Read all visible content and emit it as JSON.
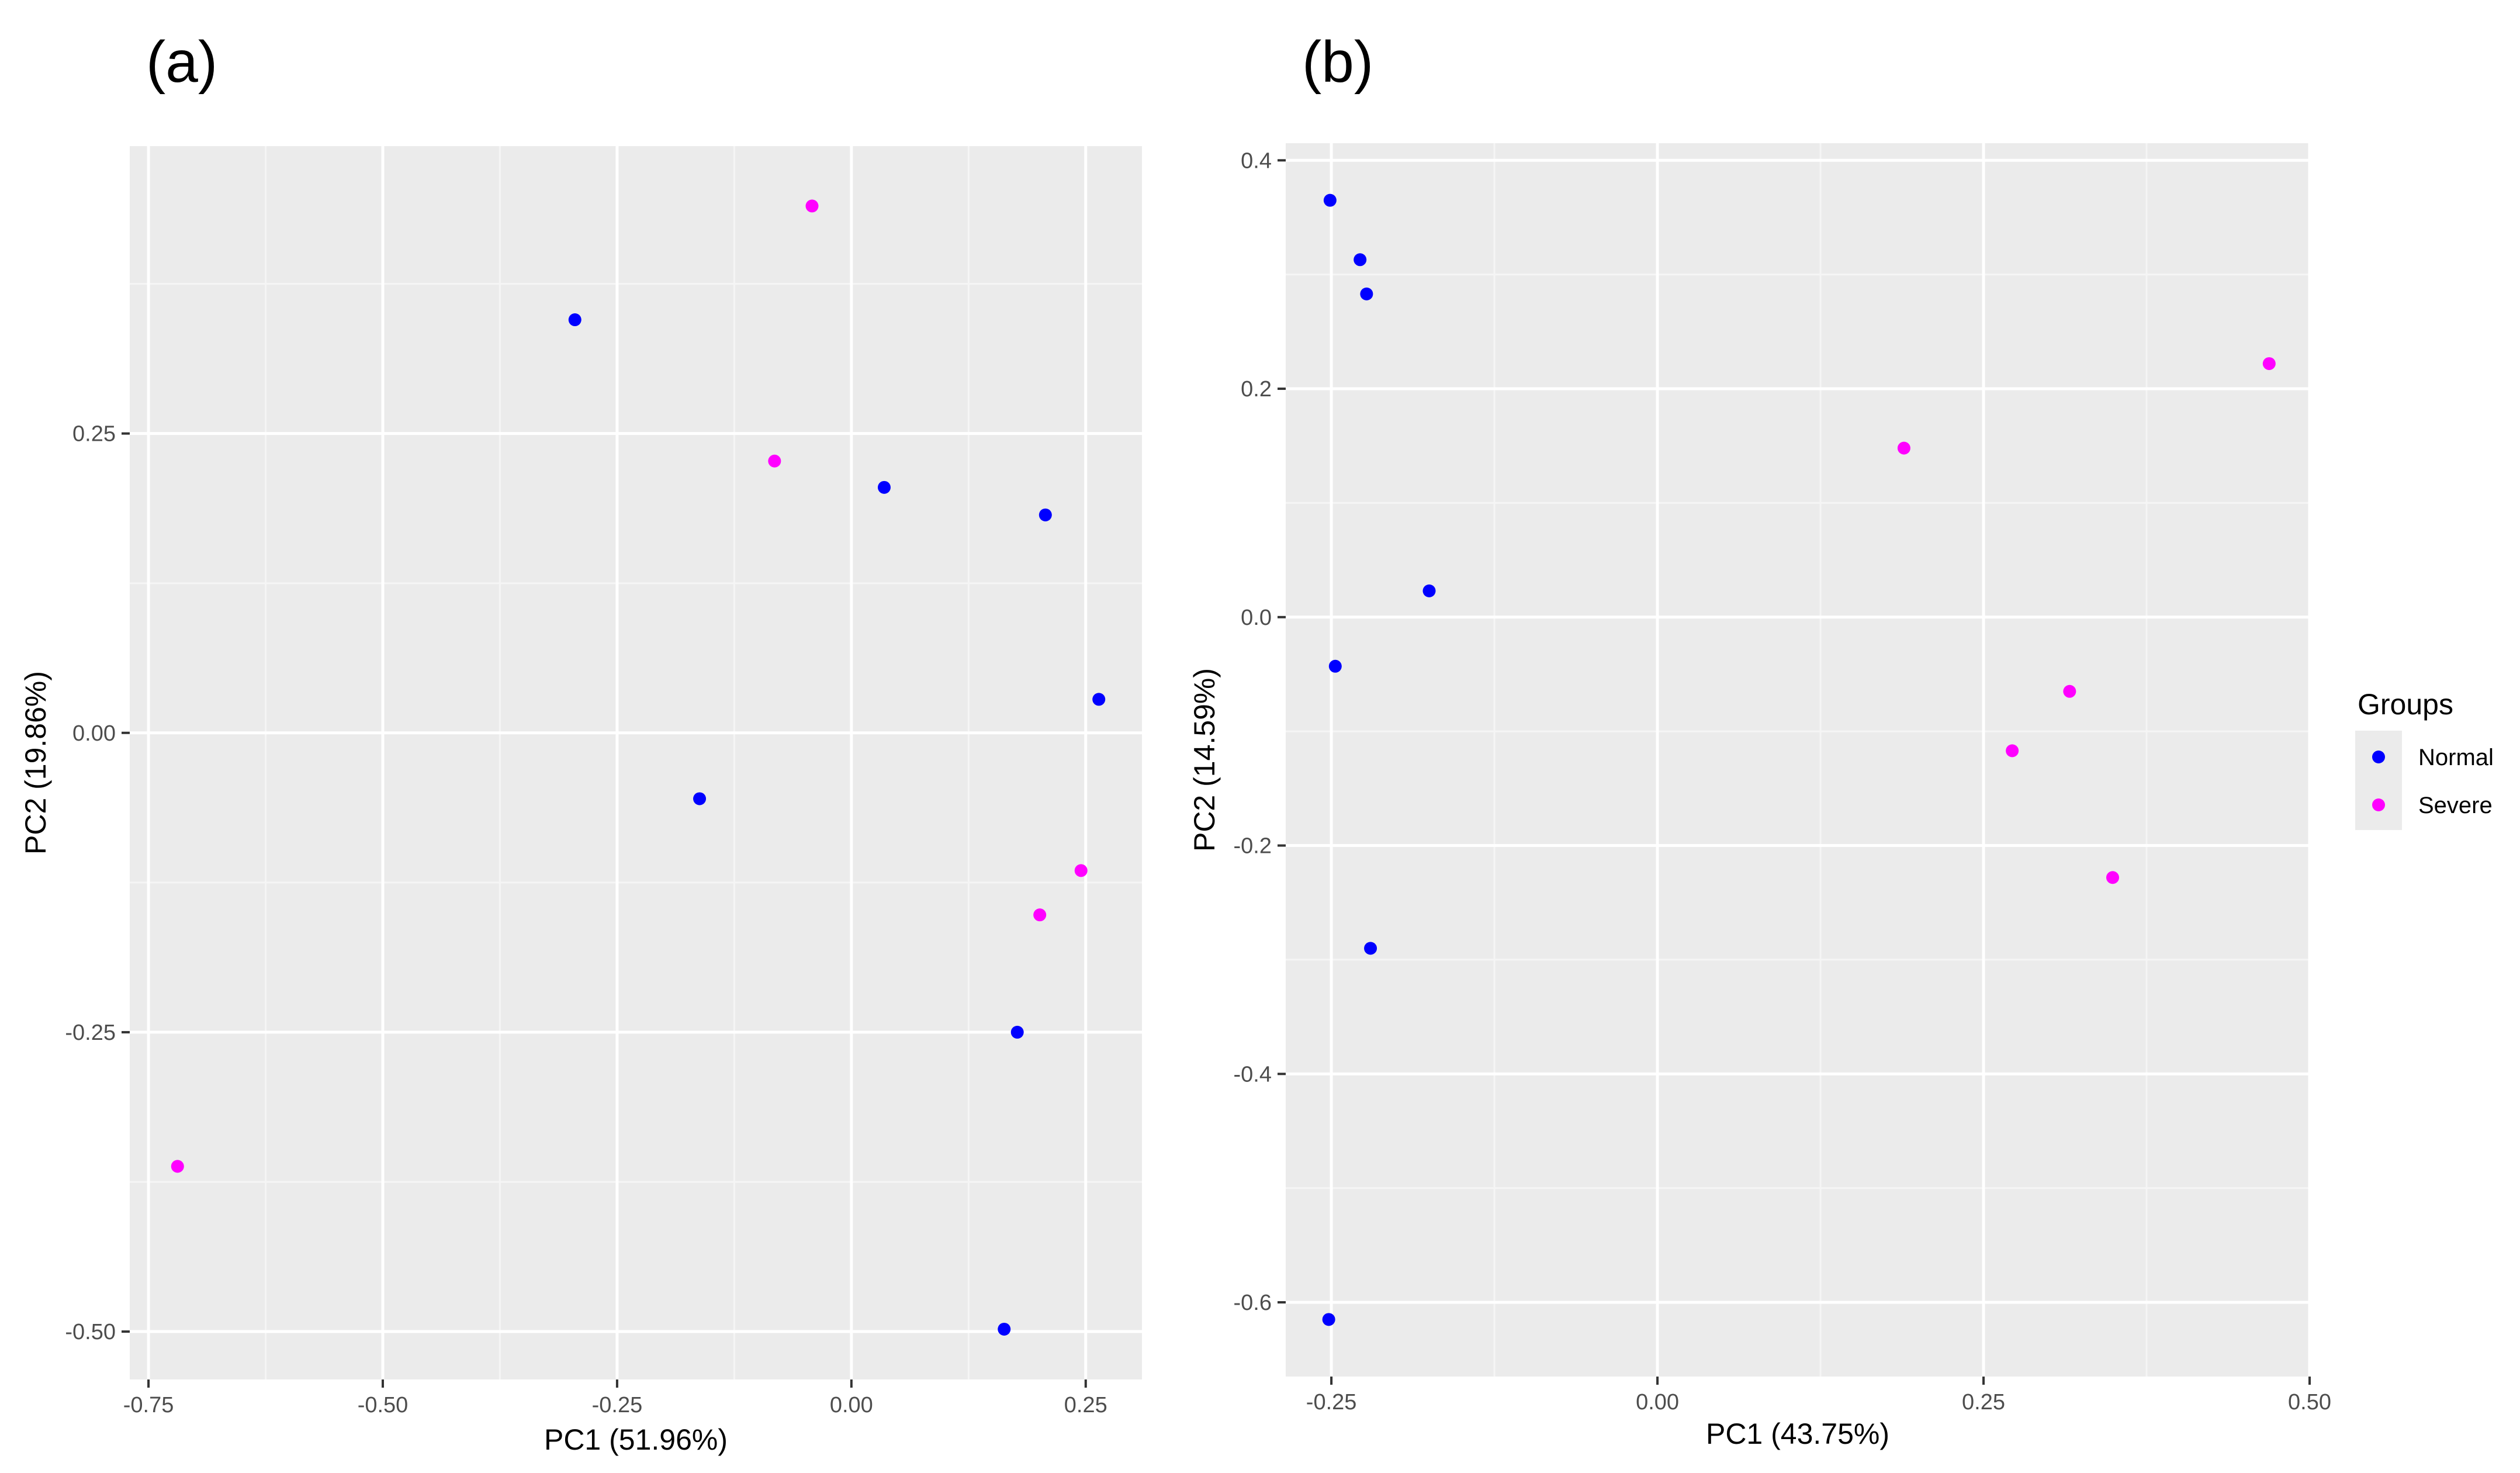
{
  "chart_data": [
    {
      "type": "scatter",
      "panel_label": "(a)",
      "xlabel": "PC1 (51.96%)",
      "ylabel": "PC2 (19.86%)",
      "xlim": [
        -0.77,
        0.31
      ],
      "ylim": [
        -0.54,
        0.49
      ],
      "x_ticks": [
        -0.75,
        -0.5,
        -0.25,
        0.0,
        0.25
      ],
      "x_tick_labels": [
        "-0.75",
        "-0.50",
        "-0.25",
        "0.00",
        "0.25"
      ],
      "y_ticks": [
        -0.5,
        -0.25,
        0.0,
        0.25
      ],
      "y_tick_labels": [
        "-0.50",
        "-0.25",
        "0.00",
        "0.25"
      ],
      "grid": true,
      "series": [
        {
          "name": "Normal",
          "color": "#0000ff",
          "points": [
            {
              "x": -0.295,
              "y": 0.345
            },
            {
              "x": 0.035,
              "y": 0.205
            },
            {
              "x": 0.207,
              "y": 0.182
            },
            {
              "x": 0.264,
              "y": 0.028
            },
            {
              "x": -0.162,
              "y": -0.055
            },
            {
              "x": 0.177,
              "y": -0.25
            },
            {
              "x": 0.163,
              "y": -0.498
            }
          ]
        },
        {
          "name": "Severe",
          "color": "#ff00ff",
          "points": [
            {
              "x": -0.042,
              "y": 0.44
            },
            {
              "x": -0.082,
              "y": 0.227
            },
            {
              "x": 0.245,
              "y": -0.115
            },
            {
              "x": 0.201,
              "y": -0.152
            },
            {
              "x": -0.719,
              "y": -0.362
            }
          ]
        }
      ]
    },
    {
      "type": "scatter",
      "panel_label": "(b)",
      "xlabel": "PC1 (43.75%)",
      "ylabel": "PC2 (14.59%)",
      "xlim": [
        -0.285,
        0.5
      ],
      "ylim": [
        -0.665,
        0.415
      ],
      "x_ticks": [
        -0.25,
        0.0,
        0.25,
        0.5
      ],
      "x_tick_labels": [
        "-0.25",
        "0.00",
        "0.25",
        "0.50"
      ],
      "y_ticks": [
        -0.6,
        -0.4,
        -0.2,
        0.0,
        0.2,
        0.4
      ],
      "y_tick_labels": [
        "-0.6",
        "-0.4",
        "-0.2",
        "0.0",
        "0.2",
        "0.4"
      ],
      "grid": true,
      "series": [
        {
          "name": "Normal",
          "color": "#0000ff",
          "points": [
            {
              "x": -0.251,
              "y": 0.365
            },
            {
              "x": -0.228,
              "y": 0.313
            },
            {
              "x": -0.223,
              "y": 0.283
            },
            {
              "x": -0.175,
              "y": 0.023
            },
            {
              "x": -0.247,
              "y": -0.043
            },
            {
              "x": -0.22,
              "y": -0.29
            },
            {
              "x": -0.252,
              "y": -0.615
            }
          ]
        },
        {
          "name": "Severe",
          "color": "#ff00ff",
          "points": [
            {
              "x": 0.469,
              "y": 0.222
            },
            {
              "x": 0.189,
              "y": 0.148
            },
            {
              "x": 0.316,
              "y": -0.065
            },
            {
              "x": 0.272,
              "y": -0.117
            },
            {
              "x": 0.349,
              "y": -0.228
            }
          ]
        }
      ]
    }
  ],
  "legend": {
    "title": "Groups",
    "placement": "right",
    "items": [
      {
        "label": "Normal",
        "color": "#0000ff"
      },
      {
        "label": "Severe",
        "color": "#ff00ff"
      }
    ]
  },
  "colors": {
    "panel_background": "#ebebeb",
    "grid_major": "#ffffff",
    "grid_minor": "#f5f5f5",
    "tick": "#333333"
  }
}
